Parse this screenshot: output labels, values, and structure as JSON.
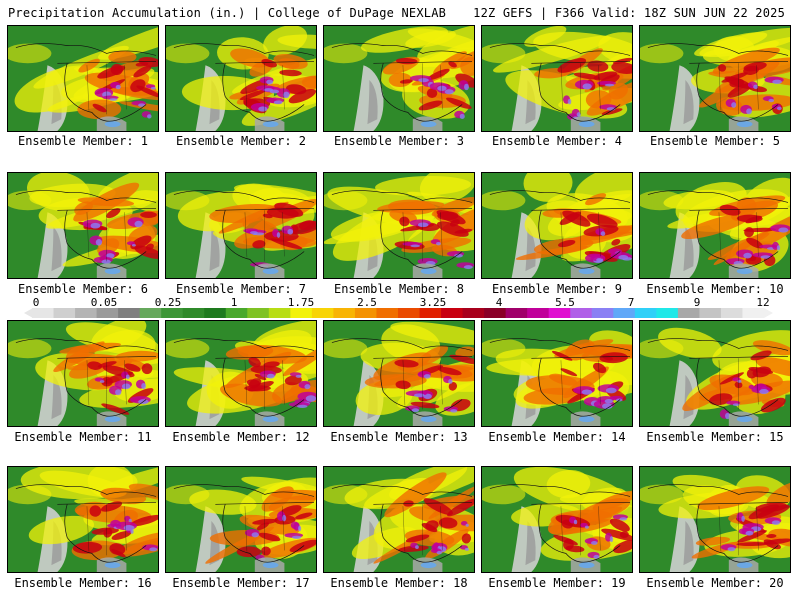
{
  "header": {
    "left": "Precipitation Accumulation (in.) | College of DuPage NEXLAB",
    "right": "12Z GEFS | F366 Valid: 18Z SUN JUN 22 2025"
  },
  "colorbar": {
    "ticks": [
      "0",
      "0.05",
      "0.25",
      "1",
      "1.75",
      "2.5",
      "3.25",
      "4",
      "5.5",
      "7",
      "9",
      "12"
    ],
    "colors": [
      "#e6e6e6",
      "#cfcfcf",
      "#b4b4b4",
      "#9a9a9a",
      "#7f7f7f",
      "#66a85c",
      "#3d9637",
      "#2f8a2a",
      "#1e7a1e",
      "#49a82c",
      "#7fc224",
      "#b8dd14",
      "#f2f20a",
      "#f8d406",
      "#f8b404",
      "#f49202",
      "#f06e00",
      "#ea4a00",
      "#e02000",
      "#c80010",
      "#a8001c",
      "#8a0028",
      "#a0006a",
      "#c0009a",
      "#e010d0",
      "#b060e8",
      "#8a80f4",
      "#60a8f8",
      "#30d0f8",
      "#20e8e8",
      "#a8a8a8",
      "#c4c4c4",
      "#dcdcdc",
      "#f0f0f0"
    ]
  },
  "members": [
    {
      "label": "Ensemble Member: 1"
    },
    {
      "label": "Ensemble Member: 2"
    },
    {
      "label": "Ensemble Member: 3"
    },
    {
      "label": "Ensemble Member: 4"
    },
    {
      "label": "Ensemble Member: 5"
    },
    {
      "label": "Ensemble Member: 6"
    },
    {
      "label": "Ensemble Member: 7"
    },
    {
      "label": "Ensemble Member: 8"
    },
    {
      "label": "Ensemble Member: 9"
    },
    {
      "label": "Ensemble Member: 10"
    },
    {
      "label": "Ensemble Member: 11"
    },
    {
      "label": "Ensemble Member: 12"
    },
    {
      "label": "Ensemble Member: 13"
    },
    {
      "label": "Ensemble Member: 14"
    },
    {
      "label": "Ensemble Member: 15"
    },
    {
      "label": "Ensemble Member: 16"
    },
    {
      "label": "Ensemble Member: 17"
    },
    {
      "label": "Ensemble Member: 18"
    },
    {
      "label": "Ensemble Member: 19"
    },
    {
      "label": "Ensemble Member: 20"
    }
  ]
}
